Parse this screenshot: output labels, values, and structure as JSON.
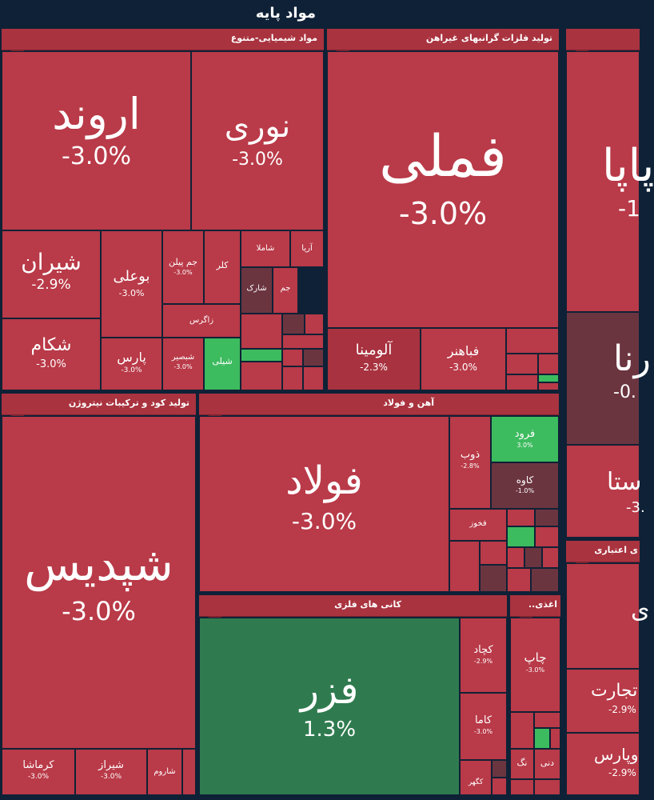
{
  "header": {
    "title": "مواد پایه"
  },
  "sectors": {
    "chem": {
      "title": "مواد شیمیایی-متنوع"
    },
    "metal": {
      "title": "تولید فلزات گرانبهای غیراهن"
    },
    "fert": {
      "title": "تولید کود و ترکیبات نیتروژن"
    },
    "steel": {
      "title": "آهن و فولاد"
    },
    "mine": {
      "title": "کانی های فلزی"
    },
    "paper": {
      "title": "..اغذی"
    },
    "credit": {
      "title": "ی اعتباری"
    }
  },
  "tiles": {
    "arvand": {
      "name": "اروند",
      "pct": "-3.0%"
    },
    "nouri": {
      "name": "نوری",
      "pct": "-3.0%"
    },
    "shiran": {
      "name": "شیران",
      "pct": "-2.9%"
    },
    "boali": {
      "name": "بوعلی",
      "pct": "-3.0%"
    },
    "jampilan": {
      "name": "جم پیلن",
      "pct": "-3.0%"
    },
    "kala": {
      "name": "کلر"
    },
    "shamla": {
      "name": "شاملا"
    },
    "arya": {
      "name": "آریا"
    },
    "sharak": {
      "name": "شارک"
    },
    "jam": {
      "name": "جم"
    },
    "zagros": {
      "name": "زاگرس"
    },
    "shekam": {
      "name": "شکام",
      "pct": "-3.0%"
    },
    "pars": {
      "name": "پارس",
      "pct": "-3.0%"
    },
    "shebsir": {
      "name": "شبصیر",
      "pct": "-3.0%"
    },
    "shoali": {
      "name": "شیلی"
    },
    "fameli": {
      "name": "فملی",
      "pct": "-3.0%"
    },
    "alumina": {
      "name": "آلومینا",
      "pct": "-2.3%"
    },
    "fabahonar": {
      "name": "فباهنر",
      "pct": "-3.0%"
    },
    "paya": {
      "name": "پاپا",
      "pct": "-1"
    },
    "rena": {
      "name": "رنا",
      "pct": "-0."
    },
    "asta": {
      "name": "ستا",
      "pct": "-3."
    },
    "shepdis": {
      "name": "شپدیس",
      "pct": "-3.0%"
    },
    "kermasha": {
      "name": "کرماشا",
      "pct": "-3.0%"
    },
    "shiraz": {
      "name": "شیراز",
      "pct": "-3.0%"
    },
    "sharoom": {
      "name": "شاروم"
    },
    "foolad": {
      "name": "فولاد",
      "pct": "-3.0%"
    },
    "zob": {
      "name": "ذوب",
      "pct": "-2.8%"
    },
    "forood": {
      "name": "فرود",
      "pct": "3.0%"
    },
    "kaveh": {
      "name": "کاوه",
      "pct": "-1.0%"
    },
    "fakhoz": {
      "name": "فخوز"
    },
    "fazar": {
      "name": "فزر",
      "pct": "1.3%"
    },
    "kachad": {
      "name": "کچاد",
      "pct": "-2.9%"
    },
    "kama": {
      "name": "کاما",
      "pct": "-3.0%"
    },
    "kagohar": {
      "name": "کگهر"
    },
    "chap": {
      "name": "چاپ",
      "pct": "-3.0%"
    },
    "nag": {
      "name": "نگ"
    },
    "dani": {
      "name": "دنی"
    },
    "tejarat": {
      "name": "تجارت",
      "pct": "-2.9%"
    },
    "vpars": {
      "name": "وپارس",
      "pct": "-2.9%"
    },
    "credit_h": {
      "name": "ی"
    }
  },
  "colors": {
    "bg": "#0f2136",
    "red": "#b93a48",
    "green": "#2f7b4f",
    "lightgreen": "#3dbb5f",
    "dark": "#6b3540"
  }
}
